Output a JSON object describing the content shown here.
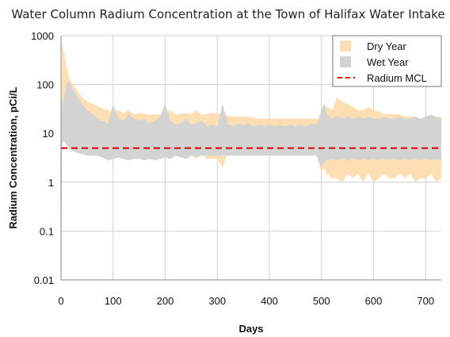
{
  "chart_data": {
    "type": "area",
    "title": "Water Column Radium Concentration at the Town of Halifax Water Intake",
    "xlabel": "Days",
    "ylabel": "Radium Concentration, pCi/L",
    "xlim": [
      0,
      730
    ],
    "ylim": [
      0.01,
      1000
    ],
    "y_scale": "log",
    "x_ticks": [
      "0",
      "100",
      "200",
      "300",
      "400",
      "500",
      "600",
      "700"
    ],
    "y_ticks": [
      "0.01",
      "0.1",
      "1",
      "10",
      "100",
      "1000"
    ],
    "grid": true,
    "legend_position": "top-right",
    "series": [
      {
        "name": "Dry Year",
        "color": "#fddfb3",
        "kind": "band",
        "x": [
          0,
          2,
          5,
          10,
          15,
          20,
          30,
          40,
          50,
          60,
          70,
          80,
          90,
          100,
          110,
          120,
          130,
          140,
          150,
          160,
          170,
          180,
          190,
          200,
          210,
          220,
          230,
          240,
          250,
          260,
          270,
          280,
          290,
          300,
          310,
          320,
          330,
          340,
          350,
          360,
          370,
          380,
          390,
          400,
          410,
          420,
          430,
          440,
          450,
          460,
          470,
          480,
          490,
          500,
          505,
          510,
          520,
          530,
          540,
          550,
          560,
          570,
          580,
          590,
          600,
          610,
          620,
          630,
          640,
          650,
          660,
          670,
          680,
          690,
          700,
          710,
          720,
          730
        ],
        "upper": [
          6,
          700,
          500,
          250,
          150,
          110,
          80,
          55,
          45,
          40,
          36,
          32,
          30,
          28,
          30,
          26,
          30,
          24,
          26,
          25,
          24,
          25,
          24,
          26,
          30,
          24,
          25,
          26,
          25,
          30,
          24,
          25,
          26,
          25,
          24,
          23,
          22,
          22,
          22,
          22,
          21,
          20,
          20,
          20,
          20,
          20,
          20,
          20,
          20,
          20,
          20,
          20,
          20,
          20,
          40,
          35,
          30,
          55,
          45,
          40,
          35,
          30,
          30,
          35,
          30,
          28,
          25,
          25,
          24,
          25,
          22,
          22,
          22,
          20,
          22,
          22,
          22,
          22
        ],
        "lower": [
          0.01,
          8,
          8,
          7,
          6,
          5,
          5,
          4.5,
          4.5,
          4.5,
          4.5,
          4,
          4,
          4,
          4,
          4,
          4,
          4,
          4,
          3.5,
          4,
          3.5,
          3.5,
          4,
          3.5,
          4,
          3.5,
          4,
          4,
          3,
          4,
          3,
          3,
          3,
          2,
          4,
          4,
          4,
          4,
          4,
          4,
          4,
          4,
          4,
          4,
          4,
          4,
          4,
          4,
          4,
          4,
          4,
          4,
          1.5,
          2,
          1.5,
          1.2,
          1.2,
          1,
          1.5,
          1.2,
          1.5,
          1,
          1.5,
          1,
          1.2,
          1.5,
          1.2,
          1.2,
          1.5,
          1.2,
          1.5,
          1,
          1.2,
          1.2,
          1.5,
          1,
          1.2
        ]
      },
      {
        "name": "Wet Year",
        "color": "#d3d3d3",
        "kind": "band",
        "x": [
          0,
          2,
          5,
          10,
          15,
          20,
          30,
          40,
          50,
          60,
          70,
          80,
          90,
          100,
          110,
          120,
          130,
          140,
          150,
          160,
          170,
          180,
          190,
          200,
          210,
          220,
          230,
          240,
          250,
          260,
          270,
          280,
          290,
          300,
          310,
          320,
          330,
          340,
          350,
          360,
          370,
          380,
          390,
          400,
          410,
          420,
          430,
          440,
          450,
          460,
          470,
          480,
          490,
          500,
          505,
          510,
          520,
          530,
          540,
          550,
          560,
          570,
          580,
          590,
          600,
          610,
          620,
          630,
          640,
          650,
          660,
          670,
          680,
          690,
          700,
          710,
          720,
          730
        ],
        "upper": [
          4,
          50,
          45,
          100,
          120,
          90,
          60,
          40,
          30,
          25,
          20,
          18,
          16,
          40,
          20,
          18,
          25,
          20,
          18,
          20,
          16,
          18,
          22,
          40,
          18,
          15,
          16,
          20,
          15,
          16,
          18,
          14,
          15,
          14,
          40,
          16,
          14,
          16,
          15,
          16,
          14,
          15,
          14,
          15,
          14,
          15,
          14,
          15,
          14,
          15,
          14,
          16,
          15,
          30,
          40,
          25,
          20,
          22,
          20,
          22,
          20,
          22,
          20,
          22,
          20,
          20,
          22,
          20,
          20,
          22,
          20,
          20,
          22,
          20,
          22,
          24,
          22,
          20
        ],
        "lower": [
          0.01,
          6,
          7,
          6,
          5,
          4.5,
          4,
          3.8,
          3.5,
          3.5,
          3.5,
          3.2,
          2.8,
          3,
          3.2,
          3,
          2.8,
          3,
          3,
          2.8,
          3,
          2.8,
          3,
          3.2,
          3,
          3.5,
          3.2,
          3,
          3.5,
          3.2,
          3.5,
          3.5,
          3.5,
          3.5,
          3.5,
          3.5,
          3.5,
          3.5,
          3.5,
          3.5,
          3.5,
          3.5,
          3.5,
          3.5,
          3.5,
          3.5,
          3.5,
          3.5,
          3.5,
          3.5,
          3.5,
          3.5,
          3.5,
          2,
          2.5,
          2.8,
          3,
          2.8,
          3,
          2.8,
          3,
          2.8,
          3,
          2.8,
          3,
          2.8,
          3,
          2.8,
          3,
          2.8,
          3,
          2.8,
          3,
          2.8,
          3,
          2.8,
          3,
          2.8
        ]
      },
      {
        "name": "Radium MCL",
        "color": "#e00000",
        "kind": "hline",
        "y": 5
      }
    ]
  }
}
